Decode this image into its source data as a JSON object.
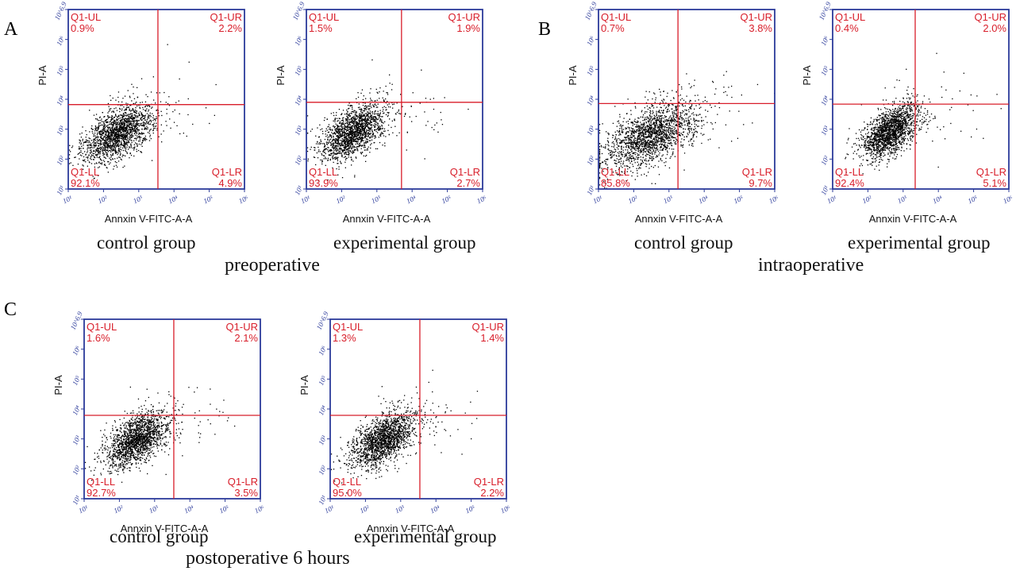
{
  "figure": {
    "panels": [
      {
        "label": "A",
        "timepoint": "preoperative"
      },
      {
        "label": "B",
        "timepoint": "intraoperative"
      },
      {
        "label": "C",
        "timepoint": "postoperative 6 hours"
      }
    ]
  },
  "chart_data": [
    {
      "type": "scatter",
      "panel": "A",
      "timepoint": "preoperative",
      "group": "control group",
      "xlabel": "Annxin V-FITC-A-A",
      "ylabel": "PI-A",
      "x_scale": "log",
      "y_scale": "log",
      "xlim": [
        10,
        1000000
      ],
      "ylim": [
        10,
        8912509
      ],
      "x_ticks": [
        "10¹",
        "10²",
        "10³",
        "10⁴",
        "10⁵",
        "10⁶"
      ],
      "y_ticks": [
        "10¹",
        "10²",
        "10³",
        "10⁴",
        "10⁵",
        "10⁶",
        "10^6.9"
      ],
      "gate": {
        "x": 3500,
        "y": 6300
      },
      "quadrants": {
        "UL": {
          "name": "Q1-UL",
          "percent": "0.9%"
        },
        "UR": {
          "name": "Q1-UR",
          "percent": "2.2%"
        },
        "LL": {
          "name": "Q1-LL",
          "percent": "92.1%"
        },
        "LR": {
          "name": "Q1-LR",
          "percent": "4.9%"
        }
      },
      "population": {
        "center_x": 250,
        "center_y": 700,
        "count": 1800,
        "spread_x": 0.5,
        "spread_y": 0.45
      }
    },
    {
      "type": "scatter",
      "panel": "A",
      "timepoint": "preoperative",
      "group": "experimental group",
      "xlabel": "Annxin V-FITC-A-A",
      "ylabel": "PI-A",
      "x_scale": "log",
      "y_scale": "log",
      "xlim": [
        10,
        1000000
      ],
      "ylim": [
        10,
        8912509
      ],
      "x_ticks": [
        "10¹",
        "10²",
        "10³",
        "10⁴",
        "10⁵",
        "10⁶"
      ],
      "y_ticks": [
        "10¹",
        "10²",
        "10³",
        "10⁴",
        "10⁵",
        "10⁶",
        "10^6.9"
      ],
      "gate": {
        "x": 5000,
        "y": 7500
      },
      "quadrants": {
        "UL": {
          "name": "Q1-UL",
          "percent": "1.5%"
        },
        "UR": {
          "name": "Q1-UR",
          "percent": "1.9%"
        },
        "LL": {
          "name": "Q1-LL",
          "percent": "93.9%"
        },
        "LR": {
          "name": "Q1-LR",
          "percent": "2.7%"
        }
      },
      "population": {
        "center_x": 200,
        "center_y": 800,
        "count": 1800,
        "spread_x": 0.45,
        "spread_y": 0.45
      }
    },
    {
      "type": "scatter",
      "panel": "B",
      "timepoint": "intraoperative",
      "group": "control group",
      "xlabel": "Annxin V-FITC-A-A",
      "ylabel": "PI-A",
      "x_scale": "log",
      "y_scale": "log",
      "xlim": [
        10,
        1000000
      ],
      "ylim": [
        10,
        8912509
      ],
      "x_ticks": [
        "10¹",
        "10²",
        "10³",
        "10⁴",
        "10⁵",
        "10⁶"
      ],
      "y_ticks": [
        "10¹",
        "10²",
        "10³",
        "10⁴",
        "10⁵",
        "10⁶",
        "10^6.9"
      ],
      "gate": {
        "x": 1800,
        "y": 6800
      },
      "quadrants": {
        "UL": {
          "name": "Q1-UL",
          "percent": "0.7%"
        },
        "UR": {
          "name": "Q1-UR",
          "percent": "3.8%"
        },
        "LL": {
          "name": "Q1-LL",
          "percent": "85.8%"
        },
        "LR": {
          "name": "Q1-LR",
          "percent": "9.7%"
        }
      },
      "population": {
        "center_x": 300,
        "center_y": 600,
        "count": 1900,
        "spread_x": 0.65,
        "spread_y": 0.55
      }
    },
    {
      "type": "scatter",
      "panel": "B",
      "timepoint": "intraoperative",
      "group": "experimental group",
      "xlabel": "Annxin V-FITC-A-A",
      "ylabel": "PI-A",
      "x_scale": "log",
      "y_scale": "log",
      "xlim": [
        10,
        1000000
      ],
      "ylim": [
        10,
        8912509
      ],
      "x_ticks": [
        "10¹",
        "10²",
        "10³",
        "10⁴",
        "10⁵",
        "10⁶"
      ],
      "y_ticks": [
        "10¹",
        "10²",
        "10³",
        "10⁴",
        "10⁵",
        "10⁶",
        "10^6.9"
      ],
      "gate": {
        "x": 2200,
        "y": 6500
      },
      "quadrants": {
        "UL": {
          "name": "Q1-UL",
          "percent": "0.4%"
        },
        "UR": {
          "name": "Q1-UR",
          "percent": "2.0%"
        },
        "LL": {
          "name": "Q1-LL",
          "percent": "92.4%"
        },
        "LR": {
          "name": "Q1-LR",
          "percent": "5.1%"
        }
      },
      "population": {
        "center_x": 400,
        "center_y": 800,
        "count": 1800,
        "spread_x": 0.4,
        "spread_y": 0.45
      }
    },
    {
      "type": "scatter",
      "panel": "C",
      "timepoint": "postoperative 6 hours",
      "group": "control group",
      "xlabel": "Annxin V-FITC-A-A",
      "ylabel": "PI-A",
      "x_scale": "log",
      "y_scale": "log",
      "xlim": [
        10,
        1000000
      ],
      "ylim": [
        10,
        8912509
      ],
      "x_ticks": [
        "10¹",
        "10²",
        "10³",
        "10⁴",
        "10⁵",
        "10⁶"
      ],
      "y_ticks": [
        "10¹",
        "10²",
        "10³",
        "10⁴",
        "10⁵",
        "10⁶",
        "10^6.9"
      ],
      "gate": {
        "x": 3500,
        "y": 5800
      },
      "quadrants": {
        "UL": {
          "name": "Q1-UL",
          "percent": "1.6%"
        },
        "UR": {
          "name": "Q1-UR",
          "percent": "2.1%"
        },
        "LL": {
          "name": "Q1-LL",
          "percent": "92.7%"
        },
        "LR": {
          "name": "Q1-LR",
          "percent": "3.5%"
        }
      },
      "population": {
        "center_x": 300,
        "center_y": 900,
        "count": 1800,
        "spread_x": 0.45,
        "spread_y": 0.45
      }
    },
    {
      "type": "scatter",
      "panel": "C",
      "timepoint": "postoperative 6 hours",
      "group": "experimental group",
      "xlabel": "Annxin V-FITC-A-A",
      "ylabel": "PI-A",
      "x_scale": "log",
      "y_scale": "log",
      "xlim": [
        10,
        1000000
      ],
      "ylim": [
        10,
        8912509
      ],
      "x_ticks": [
        "10¹",
        "10²",
        "10³",
        "10⁴",
        "10⁵",
        "10⁶"
      ],
      "y_ticks": [
        "10¹",
        "10²",
        "10³",
        "10⁴",
        "10⁵",
        "10⁶",
        "10^6.9"
      ],
      "gate": {
        "x": 3500,
        "y": 5800
      },
      "quadrants": {
        "UL": {
          "name": "Q1-UL",
          "percent": "1.3%"
        },
        "UR": {
          "name": "Q1-UR",
          "percent": "1.4%"
        },
        "LL": {
          "name": "Q1-LL",
          "percent": "95.0%"
        },
        "LR": {
          "name": "Q1-LR",
          "percent": "2.2%"
        }
      },
      "population": {
        "center_x": 300,
        "center_y": 900,
        "count": 1800,
        "spread_x": 0.45,
        "spread_y": 0.45
      }
    }
  ],
  "colors": {
    "axis": "#2b3a9a",
    "gate": "#d81e2a",
    "quadrant_text": "#d81e2a",
    "dots": "#000000"
  }
}
